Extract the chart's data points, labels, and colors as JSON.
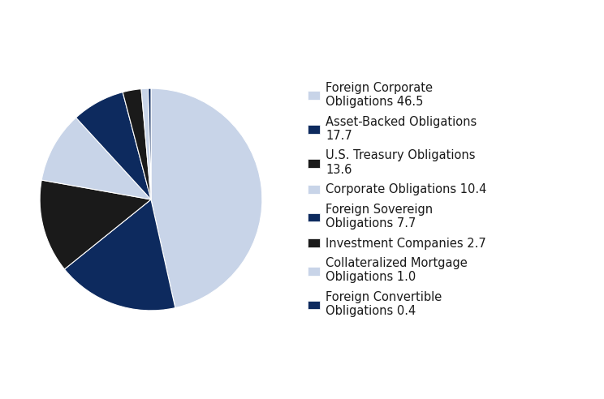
{
  "labels": [
    "Foreign Corporate\nObligations 46.5",
    "Asset-Backed Obligations\n17.7",
    "U.S. Treasury Obligations\n13.6",
    "Corporate Obligations 10.4",
    "Foreign Sovereign\nObligations 7.7",
    "Investment Companies 2.7",
    "Collateralized Mortgage\nObligations 1.0",
    "Foreign Convertible\nObligations 0.4"
  ],
  "values": [
    46.5,
    17.7,
    13.6,
    10.4,
    7.7,
    2.7,
    1.0,
    0.4
  ],
  "colors": [
    "#c8d4e8",
    "#0d2a5e",
    "#1a1a1a",
    "#c8d4e8",
    "#0d2a5e",
    "#1a1a1a",
    "#c8d4e8",
    "#0d2a5e"
  ],
  "background_color": "#ffffff",
  "font_color": "#1a1a1a",
  "font_size": 10.5
}
